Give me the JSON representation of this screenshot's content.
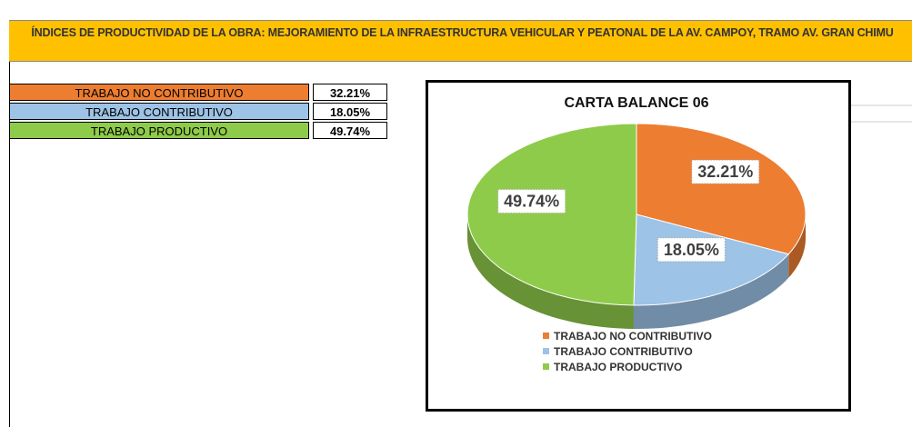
{
  "header": {
    "title": "ÍNDICES DE PRODUCTIVIDAD  DE LA OBRA: MEJORAMIENTO DE LA INFRAESTRUCTURA VEHICULAR Y PEATONAL DE LA AV. CAMPOY, TRAMO AV. GRAN CHIMU"
  },
  "table": {
    "rows": [
      [
        "TRABAJO NO CONTRIBUTIVO",
        "32.21%"
      ],
      [
        "TRABAJO CONTRIBUTIVO",
        "18.05%"
      ],
      [
        "TRABAJO PRODUCTIVO",
        "49.74%"
      ]
    ]
  },
  "chart_data": {
    "type": "pie",
    "title": "CARTA BALANCE 06",
    "categories": [
      "TRABAJO NO CONTRIBUTIVO",
      "TRABAJO CONTRIBUTIVO",
      "TRABAJO PRODUCTIVO"
    ],
    "values": [
      32.21,
      18.05,
      49.74
    ],
    "value_labels": [
      "32.21%",
      "18.05%",
      "49.74%"
    ],
    "colors": [
      "#ED7D31",
      "#9DC3E6",
      "#8FCB4A"
    ],
    "legend": "bottom"
  }
}
